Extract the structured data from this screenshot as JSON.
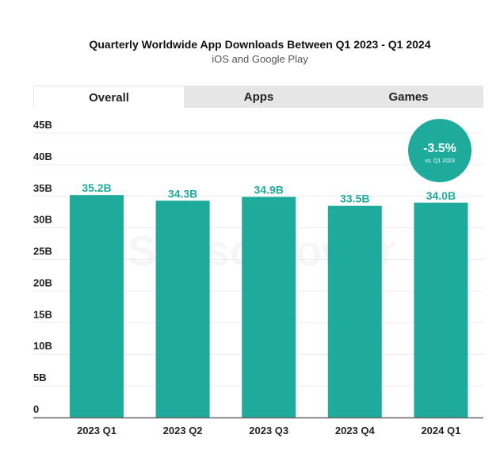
{
  "chart_data": {
    "type": "bar",
    "title": "Quarterly Worldwide App Downloads Between Q1 2023 - Q1 2024",
    "subtitle": "iOS and Google Play",
    "categories": [
      "2023 Q1",
      "2023 Q2",
      "2023 Q3",
      "2023 Q4",
      "2024 Q1"
    ],
    "values": [
      35.2,
      34.3,
      34.9,
      33.5,
      34.0
    ],
    "data_labels": [
      "35.2B",
      "34.3B",
      "34.9B",
      "33.5B",
      "34.0B"
    ],
    "ylim": [
      0,
      45
    ],
    "yticks": [
      0,
      5,
      10,
      15,
      20,
      25,
      30,
      35,
      40,
      45
    ],
    "ytick_labels": [
      "0",
      "5B",
      "10B",
      "15B",
      "20B",
      "25B",
      "30B",
      "35B",
      "40B",
      "45B"
    ],
    "grid": true,
    "bar_color": "#1eab9c",
    "annotation": {
      "value": "-3.5%",
      "note": "vs. Q1 2023"
    }
  },
  "tabs": [
    {
      "label": "Overall",
      "active": true
    },
    {
      "label": "Apps",
      "active": false
    },
    {
      "label": "Games",
      "active": false
    }
  ],
  "watermark": "SensorTower"
}
